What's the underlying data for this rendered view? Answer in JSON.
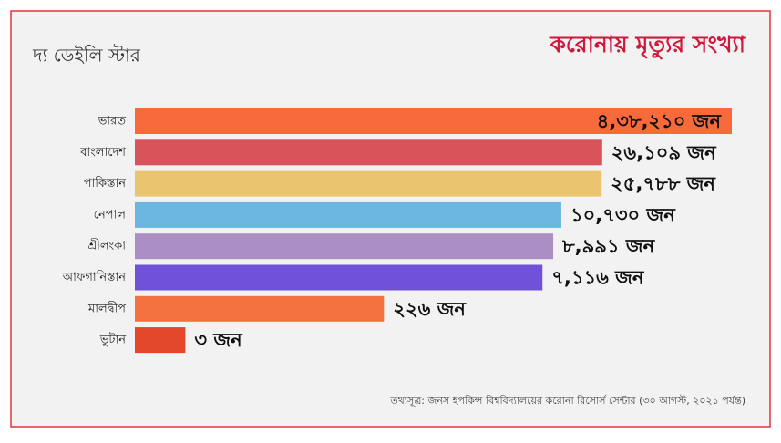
{
  "logo": "দ্য ডেইলি স্টার",
  "source": "তথ্যসূত্র:  জনস হপকিন্স বিশ্ববিদ্যালয়ের করোনা রিসোর্স সেন্টার (৩০ আগস্ট, ২০২১ পর্যন্ত)",
  "chart_data": {
    "type": "bar",
    "orientation": "horizontal",
    "scale": "log",
    "title": "করোনায় মৃত্যুর সংখ্যা",
    "categories": [
      "ভারত",
      "বাংলাদেশ",
      "পাকিস্তান",
      "নেপাল",
      "শ্রীলংকা",
      "আফগানিস্তান",
      "মালদ্বীপ",
      "ভুটান"
    ],
    "values": [
      438210,
      26109,
      25788,
      10730,
      8991,
      7116,
      226,
      3
    ],
    "value_labels": [
      "৪,৩৮,২১০ জন",
      "২৬,১০৯ জন",
      "২৫,৭৮৮ জন",
      "১০,৭৩০ জন",
      "৮,৯৯১ জন",
      "৭,১১৬ জন",
      "২২৬ জন",
      "৩ জন"
    ],
    "colors": [
      "#f96a3a",
      "#d9535a",
      "#eac46e",
      "#6cb6e2",
      "#ab8fc4",
      "#7052d9",
      "#f3723f",
      "#e2462b"
    ]
  }
}
